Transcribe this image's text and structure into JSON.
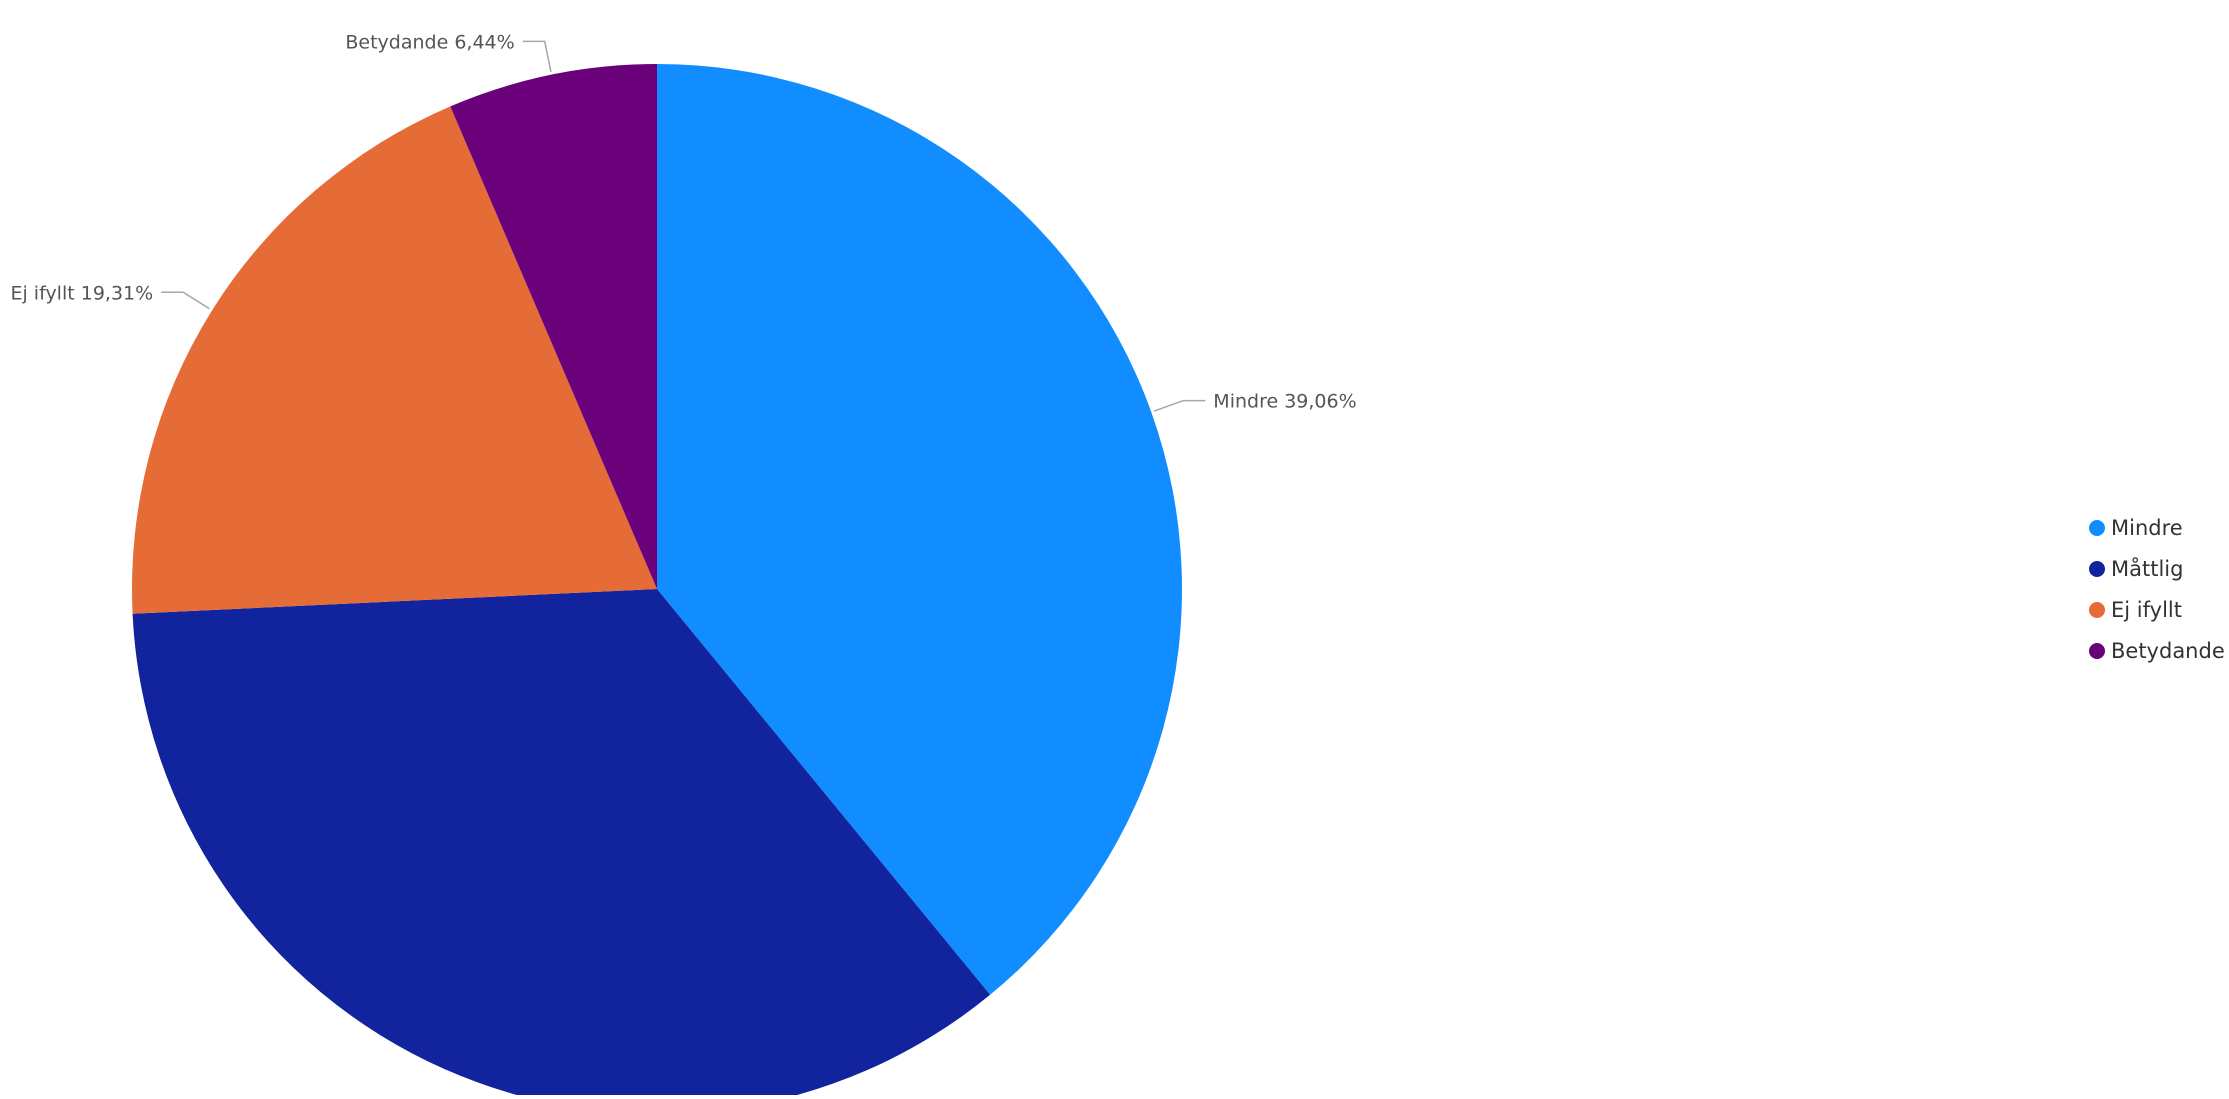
{
  "chart_data": {
    "type": "pie",
    "title": "",
    "start_angle": "top, clockwise",
    "legend": {
      "placement": "right"
    },
    "slices": [
      {
        "label": "Mindre",
        "value": 39.06,
        "value_text": "39,06%",
        "color": "#118DFF"
      },
      {
        "label": "Måttlig",
        "value": 35.19,
        "value_text": "",
        "color": "#12239E"
      },
      {
        "label": "Ej ifyllt",
        "value": 19.31,
        "value_text": "19,31%",
        "color": "#E66C37"
      },
      {
        "label": "Betydande",
        "value": 6.44,
        "value_text": "6,44%",
        "color": "#6B007B"
      }
    ]
  }
}
